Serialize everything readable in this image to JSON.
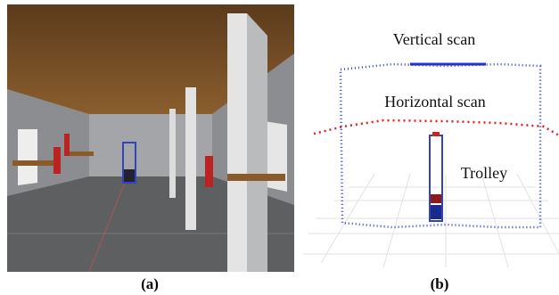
{
  "panels": [
    {
      "label": "(a)"
    },
    {
      "label": "(b)",
      "annotations": [
        "Vertical scan",
        "Horizontal scan",
        "Trolley"
      ]
    }
  ]
}
